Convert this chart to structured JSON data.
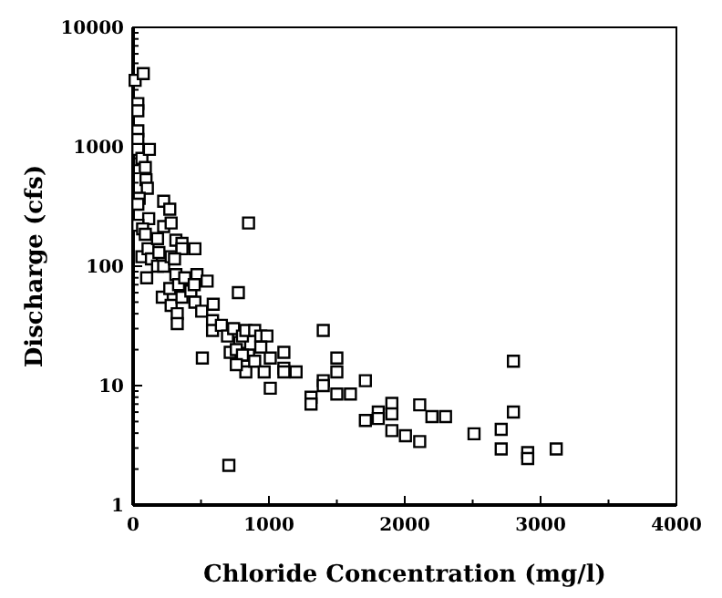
{
  "chart_data": {
    "type": "scatter",
    "xlabel": "Chloride Concentration (mg/l)",
    "ylabel": "Discharge (cfs)",
    "log": "y",
    "marker": "square",
    "grid": false,
    "xlim": [
      0,
      4000
    ],
    "ylim": [
      1,
      10000
    ],
    "xticks": [
      0,
      {
        "value": 500,
        "label": null
      },
      1000,
      {
        "value": 1500,
        "label": null
      },
      2000,
      {
        "value": 2500,
        "label": null
      },
      3000,
      {
        "value": 3500,
        "label": null
      },
      4000
    ],
    "yticks": [
      1,
      {
        "value": 2,
        "label": null
      },
      {
        "value": 3,
        "label": null
      },
      {
        "value": 4,
        "label": null
      },
      {
        "value": 5,
        "label": null
      },
      {
        "value": 6,
        "label": null
      },
      {
        "value": 7,
        "label": null
      },
      {
        "value": 8,
        "label": null
      },
      {
        "value": 9,
        "label": null
      },
      10,
      {
        "value": 20,
        "label": null
      },
      {
        "value": 30,
        "label": null
      },
      {
        "value": 40,
        "label": null
      },
      {
        "value": 50,
        "label": null
      },
      {
        "value": 60,
        "label": null
      },
      {
        "value": 70,
        "label": null
      },
      {
        "value": 80,
        "label": null
      },
      {
        "value": 90,
        "label": null
      },
      100,
      {
        "value": 200,
        "label": null
      },
      {
        "value": 300,
        "label": null
      },
      {
        "value": 400,
        "label": null
      },
      {
        "value": 500,
        "label": null
      },
      {
        "value": 600,
        "label": null
      },
      {
        "value": 700,
        "label": null
      },
      {
        "value": 800,
        "label": null
      },
      {
        "value": 900,
        "label": null
      },
      1000,
      {
        "value": 2000,
        "label": null
      },
      {
        "value": 3000,
        "label": null
      },
      {
        "value": 4000,
        "label": null
      },
      {
        "value": 5000,
        "label": null
      },
      {
        "value": 6000,
        "label": null
      },
      {
        "value": 7000,
        "label": null
      },
      {
        "value": 8000,
        "label": null
      },
      {
        "value": 9000,
        "label": null
      },
      10000
    ],
    "series": [
      {
        "color": "#000000",
        "x": [
          15,
          75,
          35,
          35,
          35,
          35,
          35,
          65,
          120,
          90,
          95,
          105,
          45,
          35,
          115,
          35,
          70,
          90,
          225,
          270,
          225,
          280,
          65,
          110,
          135,
          100,
          180,
          190,
          180,
          225,
          280,
          315,
          360,
          360,
          455,
          305,
          315,
          215,
          280,
          270,
          335,
          380,
          360,
          425,
          325,
          325,
          470,
          545,
          455,
          505,
          450,
          585,
          585,
          590,
          650,
          510,
          775,
          850,
          695,
          740,
          785,
          805,
          830,
          895,
          940,
          985,
          715,
          760,
          850,
          805,
          830,
          895,
          965,
          1010,
          1010,
          940,
          760,
          1110,
          1110,
          1110,
          1200,
          1400,
          1400,
          1400,
          1500,
          1500,
          1500,
          1600,
          1710,
          1310,
          1310,
          1710,
          1805,
          1805,
          1905,
          1905,
          1905,
          2005,
          2110,
          2110,
          2200,
          2300,
          2510,
          2710,
          2710,
          2800,
          2800,
          2905,
          2905,
          3115,
          705
        ],
        "values": [
          3600,
          4100,
          2300,
          2000,
          1360,
          1150,
          950,
          800,
          950,
          670,
          530,
          450,
          370,
          330,
          250,
          220,
          205,
          185,
          350,
          300,
          215,
          230,
          120,
          140,
          115,
          80,
          170,
          130,
          100,
          100,
          120,
          165,
          155,
          140,
          140,
          115,
          85,
          55,
          47,
          65,
          70,
          80,
          55,
          62,
          40,
          33,
          85,
          75,
          50,
          42,
          70,
          35,
          29,
          48,
          32,
          17,
          60,
          230,
          26,
          30,
          23,
          26,
          29,
          29,
          26,
          26,
          19,
          20,
          18,
          18,
          13,
          16,
          13,
          17,
          9.5,
          21,
          15,
          19,
          14,
          13,
          13,
          29,
          11,
          10,
          17,
          13,
          8.5,
          8.5,
          11,
          8,
          7,
          5.1,
          6,
          5.3,
          7.1,
          5.8,
          4.2,
          3.8,
          3.4,
          6.9,
          5.5,
          5.5,
          3.95,
          4.3,
          2.95,
          6,
          16,
          2.75,
          2.45,
          2.95,
          2.15
        ]
      }
    ]
  }
}
